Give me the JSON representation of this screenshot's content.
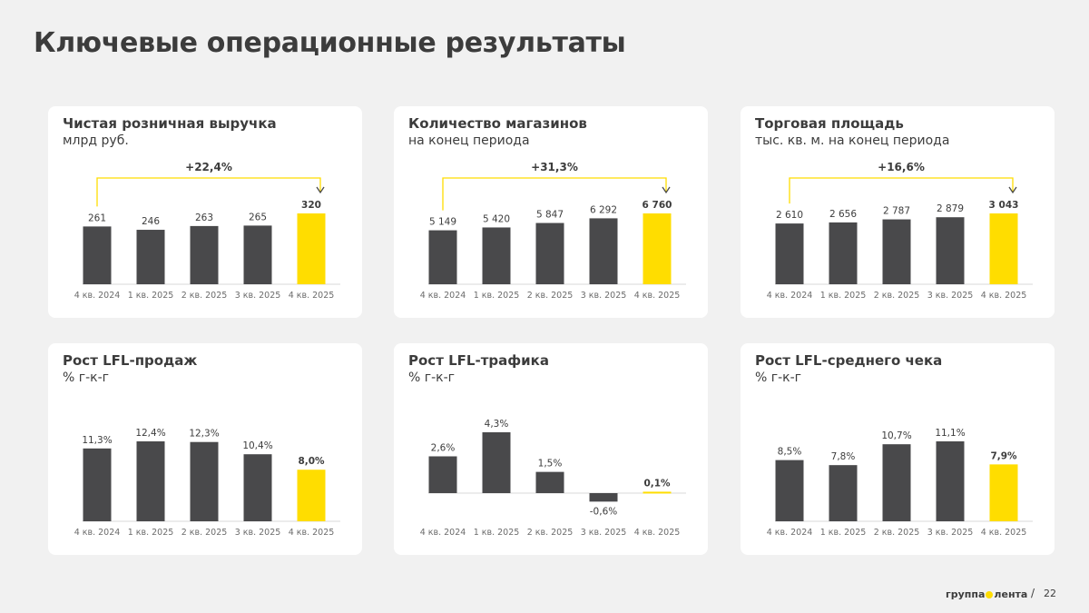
{
  "page": {
    "title": "Ключевые операционные результаты",
    "page_number": "22",
    "page_separator": "/"
  },
  "logo": {
    "left": "группа",
    "right": "лента"
  },
  "colors": {
    "bar": "#49494b",
    "highlight": "#ffdd00",
    "axis": "#d9d9d9",
    "text": "#3c3c3c"
  },
  "chart_data": [
    {
      "type": "bar",
      "title": "Чистая розничная выручка",
      "subtitle": "млрд руб.",
      "categories": [
        "4 кв. 2024",
        "1 кв. 2025",
        "2 кв. 2025",
        "3 кв. 2025",
        "4 кв. 2025"
      ],
      "values": [
        261,
        246,
        263,
        265,
        320
      ],
      "labels": [
        "261",
        "246",
        "263",
        "265",
        "320"
      ],
      "highlight_index": 4,
      "growth": "+22,4%",
      "ylim": [
        0,
        320
      ]
    },
    {
      "type": "bar",
      "title": "Количество магазинов",
      "subtitle": "на конец периода",
      "categories": [
        "4 кв. 2024",
        "1 кв. 2025",
        "2 кв. 2025",
        "3 кв. 2025",
        "4 кв. 2025"
      ],
      "values": [
        5149,
        5420,
        5847,
        6292,
        6760
      ],
      "labels": [
        "5 149",
        "5 420",
        "5 847",
        "6 292",
        "6 760"
      ],
      "highlight_index": 4,
      "growth": "+31,3%",
      "ylim": [
        0,
        6760
      ]
    },
    {
      "type": "bar",
      "title": "Торговая площадь",
      "subtitle": "тыс. кв. м. на конец периода",
      "categories": [
        "4 кв. 2024",
        "1 кв. 2025",
        "2 кв. 2025",
        "3 кв. 2025",
        "4 кв. 2025"
      ],
      "values": [
        2610,
        2656,
        2787,
        2879,
        3043
      ],
      "labels": [
        "2 610",
        "2 656",
        "2 787",
        "2 879",
        "3 043"
      ],
      "highlight_index": 4,
      "growth": "+16,6%",
      "ylim": [
        0,
        3043
      ]
    },
    {
      "type": "bar",
      "title": "Рост LFL-продаж",
      "subtitle": "% г-к-г",
      "categories": [
        "4 кв. 2024",
        "1 кв. 2025",
        "2 кв. 2025",
        "3 кв. 2025",
        "4 кв. 2025"
      ],
      "values": [
        11.3,
        12.4,
        12.3,
        10.4,
        8.0
      ],
      "labels": [
        "11,3%",
        "12,4%",
        "12,3%",
        "10,4%",
        "8,0%"
      ],
      "highlight_index": 4,
      "ylim": [
        0,
        12.4
      ]
    },
    {
      "type": "bar",
      "title": "Рост LFL-трафика",
      "subtitle": "% г-к-г",
      "categories": [
        "4 кв. 2024",
        "1 кв. 2025",
        "2 кв. 2025",
        "3 кв. 2025",
        "4 кв. 2025"
      ],
      "values": [
        2.6,
        4.3,
        1.5,
        -0.6,
        0.1
      ],
      "labels": [
        "2,6%",
        "4,3%",
        "1,5%",
        "-0,6%",
        "0,1%"
      ],
      "highlight_index": 4,
      "ylim": [
        -0.6,
        4.3
      ]
    },
    {
      "type": "bar",
      "title": "Рост LFL-среднего чека",
      "subtitle": "% г-к-г",
      "categories": [
        "4 кв. 2024",
        "1 кв. 2025",
        "2 кв. 2025",
        "3 кв. 2025",
        "4 кв. 2025"
      ],
      "values": [
        8.5,
        7.8,
        10.7,
        11.1,
        7.9
      ],
      "labels": [
        "8,5%",
        "7,8%",
        "10,7%",
        "11,1%",
        "7,9%"
      ],
      "highlight_index": 4,
      "ylim": [
        0,
        11.1
      ]
    }
  ]
}
